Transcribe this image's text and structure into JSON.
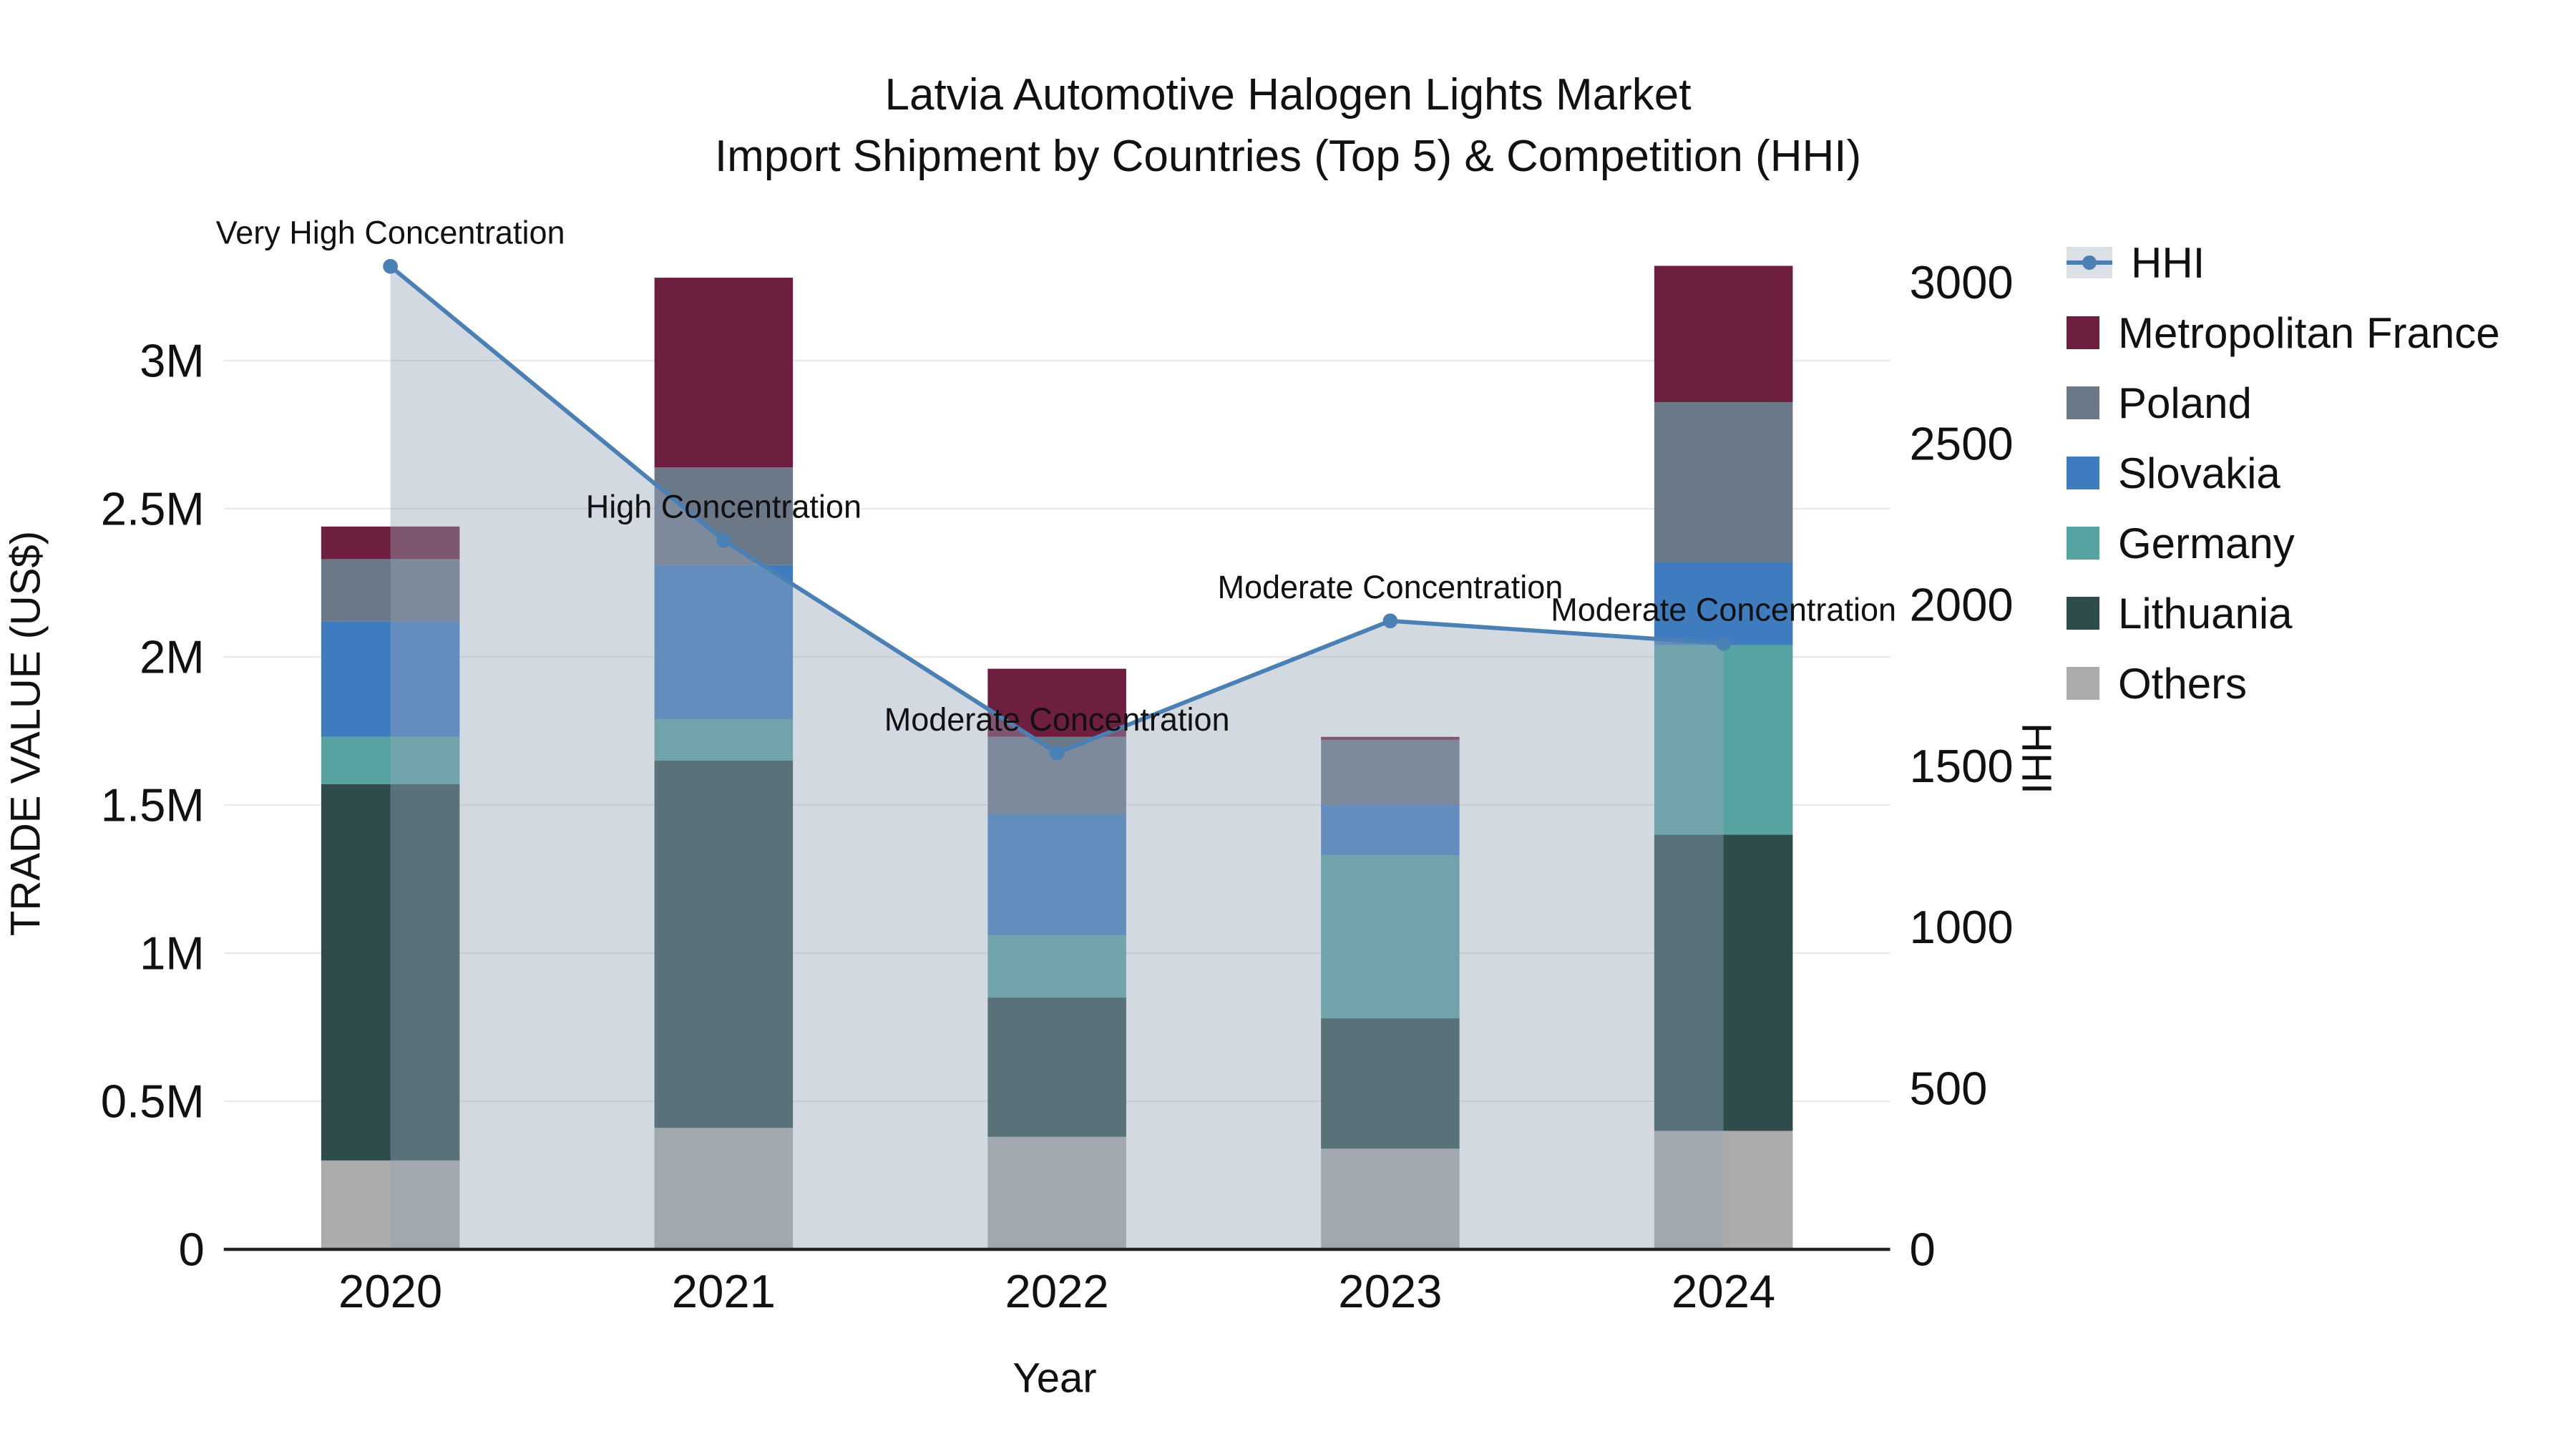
{
  "title": {
    "line1": "Latvia Automotive Halogen Lights Market",
    "line2": "Import Shipment by Countries (Top 5) & Competition (HHI)"
  },
  "chart_data": {
    "type": "bar+line",
    "unit": "million US$",
    "categories": [
      "2020",
      "2021",
      "2022",
      "2023",
      "2024"
    ],
    "series": [
      {
        "name": "Others",
        "color": "#ababab",
        "values": [
          0.3,
          0.41,
          0.38,
          0.34,
          0.4
        ]
      },
      {
        "name": "Lithuania",
        "color": "#2e4c4b",
        "values": [
          1.27,
          1.24,
          0.47,
          0.44,
          1.0
        ]
      },
      {
        "name": "Germany",
        "color": "#57a3a1",
        "values": [
          0.16,
          0.14,
          0.21,
          0.55,
          0.64
        ]
      },
      {
        "name": "Slovakia",
        "color": "#3f7cbf",
        "values": [
          0.39,
          0.52,
          0.41,
          0.17,
          0.28
        ]
      },
      {
        "name": "Poland",
        "color": "#6b7888",
        "values": [
          0.21,
          0.33,
          0.26,
          0.22,
          0.54
        ]
      },
      {
        "name": "Metropolitan France",
        "color": "#6e1e3e",
        "values": [
          0.11,
          0.64,
          0.23,
          0.01,
          0.46
        ]
      }
    ],
    "hhi": {
      "name": "HHI",
      "color": "#4a80b4",
      "area_color": "rgba(150,165,183,0.42)",
      "values": [
        3050,
        2200,
        1540,
        1950,
        1880
      ]
    },
    "annotations": [
      {
        "year": "2020",
        "text": "Very High Concentration"
      },
      {
        "year": "2021",
        "text": "High Concentration"
      },
      {
        "year": "2022",
        "text": "Moderate Concentration"
      },
      {
        "year": "2023",
        "text": "Moderate Concentration"
      },
      {
        "year": "2024",
        "text": "Moderate Concentration"
      }
    ],
    "left_axis": {
      "label": "TRADE VALUE (US$)",
      "ticks": [
        "0",
        "0.5M",
        "1M",
        "1.5M",
        "2M",
        "2.5M",
        "3M"
      ],
      "tick_values": [
        0,
        0.5,
        1,
        1.5,
        2,
        2.5,
        3
      ],
      "max": 3.5
    },
    "right_axis": {
      "label": "HHI",
      "ticks": [
        "0",
        "500",
        "1000",
        "1500",
        "2000",
        "2500",
        "3000"
      ],
      "tick_values": [
        0,
        500,
        1000,
        1500,
        2000,
        2500,
        3000
      ],
      "max": 3217
    },
    "x_label": "Year"
  }
}
